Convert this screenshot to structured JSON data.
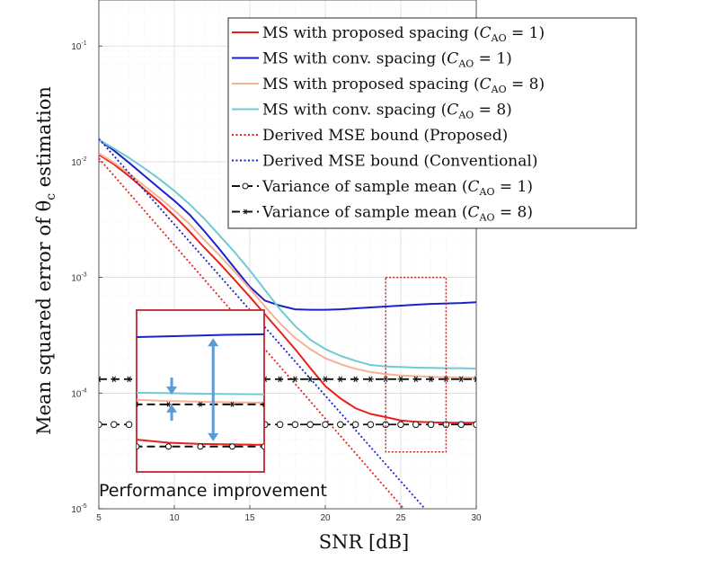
{
  "chart_data": {
    "type": "line",
    "xlabel": "SNR [dB]",
    "ylabel": "Mean squared error of θ",
    "ylabel_sub": "c",
    "ylabel_tail": " estimation",
    "xlim": [
      5,
      30
    ],
    "ylim": [
      1e-05,
      0.25
    ],
    "yscale": "log",
    "grid": true,
    "legend_position": "top-right",
    "x_ticks": [
      5,
      10,
      15,
      20,
      25,
      30
    ],
    "y_ticks": [
      {
        "value": 1e-05,
        "mant": "10",
        "exp": "-5"
      },
      {
        "value": 0.0001,
        "mant": "10",
        "exp": "-4"
      },
      {
        "value": 0.001,
        "mant": "10",
        "exp": "-3"
      },
      {
        "value": 0.01,
        "mant": "10",
        "exp": "-2"
      },
      {
        "value": 0.1,
        "mant": "10",
        "exp": "-1"
      }
    ],
    "series": [
      {
        "name": "MS with proposed spacing",
        "name_param": "1",
        "color": "#e8221a",
        "style": "solid",
        "marker": "none",
        "x": [
          5,
          6,
          7,
          8,
          9,
          10,
          11,
          12,
          13,
          14,
          15,
          16,
          17,
          18,
          19,
          20,
          21,
          22,
          23,
          24,
          25,
          26,
          27,
          28,
          29,
          30
        ],
        "y": [
          0.0115,
          0.0095,
          0.0075,
          0.0058,
          0.0045,
          0.0034,
          0.0025,
          0.0018,
          0.00132,
          0.00095,
          0.00068,
          0.00048,
          0.00034,
          0.00024,
          0.000165,
          0.000115,
          9e-05,
          7.4e-05,
          6.6e-05,
          6.2e-05,
          5.8e-05,
          5.65e-05,
          5.6e-05,
          5.55e-05,
          5.55e-05,
          5.55e-05
        ]
      },
      {
        "name": "MS with conv. spacing",
        "name_param": "1",
        "color": "#1a22c8",
        "style": "solid",
        "marker": "none",
        "x": [
          5,
          6,
          7,
          8,
          9,
          10,
          11,
          12,
          13,
          14,
          15,
          16,
          17,
          18,
          19,
          20,
          21,
          22,
          23,
          24,
          25,
          26,
          27,
          28,
          29,
          30
        ],
        "y": [
          0.0155,
          0.0125,
          0.0098,
          0.0076,
          0.0059,
          0.0046,
          0.0035,
          0.0025,
          0.00175,
          0.0012,
          0.00083,
          0.00063,
          0.00057,
          0.00053,
          0.000525,
          0.000525,
          0.00053,
          0.00054,
          0.00055,
          0.00056,
          0.00057,
          0.00058,
          0.00059,
          0.000595,
          0.0006,
          0.00061
        ]
      },
      {
        "name": "MS with proposed spacing",
        "name_param": "8",
        "color": "#f7b294",
        "style": "solid",
        "marker": "none",
        "x": [
          5,
          6,
          7,
          8,
          9,
          10,
          11,
          12,
          13,
          14,
          15,
          16,
          17,
          18,
          19,
          20,
          21,
          22,
          23,
          24,
          25,
          26,
          27,
          28,
          29,
          30
        ],
        "y": [
          0.0118,
          0.0098,
          0.0079,
          0.0062,
          0.0049,
          0.0038,
          0.0029,
          0.0021,
          0.00155,
          0.00112,
          0.0008,
          0.00056,
          0.0004,
          0.0003,
          0.00024,
          0.0002,
          0.000178,
          0.000162,
          0.000152,
          0.000146,
          0.000142,
          0.00014,
          0.000138,
          0.000137,
          0.000137,
          0.000136
        ]
      },
      {
        "name": "MS with conv. spacing",
        "name_param": "8",
        "color": "#6fcad2",
        "style": "solid",
        "marker": "none",
        "x": [
          5,
          6,
          7,
          8,
          9,
          10,
          11,
          12,
          13,
          14,
          15,
          16,
          17,
          18,
          19,
          20,
          21,
          22,
          23,
          24,
          25,
          26,
          27,
          28,
          29,
          30
        ],
        "y": [
          0.0155,
          0.013,
          0.0108,
          0.0088,
          0.0071,
          0.0056,
          0.0043,
          0.0032,
          0.0023,
          0.00165,
          0.00115,
          0.00078,
          0.00053,
          0.00038,
          0.00029,
          0.00024,
          0.00021,
          0.00019,
          0.000175,
          0.00017,
          0.000168,
          0.000166,
          0.000165,
          0.000164,
          0.000164,
          0.000163
        ]
      },
      {
        "name": "Derived MSE bound (Proposed)",
        "color": "#e8221a",
        "style": "dotted",
        "marker": "none",
        "x": [
          5,
          25.2
        ],
        "y": [
          0.0107,
          1e-05
        ]
      },
      {
        "name": "Derived MSE bound (Conventional)",
        "color": "#1a22c8",
        "style": "dotted",
        "marker": "none",
        "x": [
          5,
          26.6
        ],
        "y": [
          0.0158,
          1e-05
        ]
      },
      {
        "name": "Variance of sample mean",
        "name_param": "1",
        "color": "#111111",
        "style": "dashed",
        "marker": "circle",
        "x": [
          5,
          6,
          7,
          8,
          9,
          10,
          11,
          12,
          13,
          14,
          15,
          16,
          17,
          18,
          19,
          20,
          21,
          22,
          23,
          24,
          25,
          26,
          27,
          28,
          29,
          30
        ],
        "y": [
          5.35e-05,
          5.35e-05,
          5.35e-05,
          5.35e-05,
          5.35e-05,
          5.35e-05,
          5.35e-05,
          5.35e-05,
          5.35e-05,
          5.35e-05,
          5.35e-05,
          5.35e-05,
          5.35e-05,
          5.35e-05,
          5.35e-05,
          5.35e-05,
          5.35e-05,
          5.35e-05,
          5.35e-05,
          5.35e-05,
          5.35e-05,
          5.35e-05,
          5.35e-05,
          5.35e-05,
          5.35e-05,
          5.35e-05
        ]
      },
      {
        "name": "Variance of sample mean",
        "name_param": "8",
        "color": "#111111",
        "style": "dashed",
        "marker": "star",
        "x": [
          5,
          6,
          7,
          8,
          9,
          10,
          11,
          12,
          13,
          14,
          15,
          16,
          17,
          18,
          19,
          20,
          21,
          22,
          23,
          24,
          25,
          26,
          27,
          28,
          29,
          30
        ],
        "y": [
          0.000132,
          0.000132,
          0.000132,
          0.000132,
          0.000132,
          0.000132,
          0.000132,
          0.000132,
          0.000132,
          0.000132,
          0.000132,
          0.000132,
          0.000132,
          0.000132,
          0.000132,
          0.000132,
          0.000132,
          0.000132,
          0.000132,
          0.000132,
          0.000132,
          0.000132,
          0.000132,
          0.000132,
          0.000132,
          0.000132
        ]
      }
    ],
    "param_prefix": "C",
    "param_sub": "AO",
    "annotation": "Performance improvement",
    "highlight_region": {
      "x": [
        24,
        28
      ],
      "y": [
        3.1e-05,
        0.001
      ],
      "color": "#c0272d"
    },
    "inset": {
      "x": [
        24,
        28
      ],
      "y": [
        3.1e-05,
        0.001
      ],
      "border_color": "#c0272d",
      "arrow_color": "#5b9bd5"
    }
  }
}
